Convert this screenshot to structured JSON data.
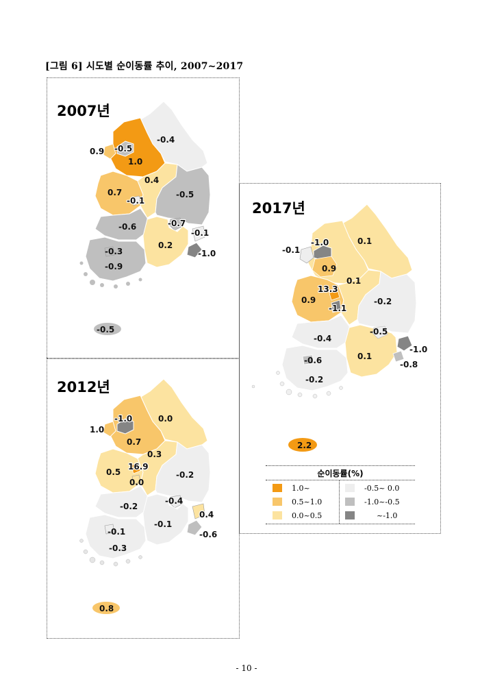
{
  "page_title": "[그림 6] 시도별 순이동률 추이, 2007~2017",
  "page_number": "- 10 -",
  "colors": {
    "c_1_up": "#f39a14",
    "c_05_10": "#f8c66a",
    "c_00_05": "#fce3a0",
    "c_m05_00": "#eeeeee",
    "c_m10_m05": "#bfbfbf",
    "c_below_m10": "#858585"
  },
  "maps": [
    {
      "year_label": "2007년",
      "values": {
        "seoul": "-0.5",
        "incheon": "0.9",
        "gyeonggi": "1.0",
        "gangwon": "-0.4",
        "chungbuk": "0.4",
        "chungnam": "0.7",
        "daejeon": "-0.1",
        "gyeongbuk": "-0.5",
        "jeonbuk": "-0.6",
        "daegu": "-0.7",
        "ulsan": "-0.1",
        "gwangju": "-0.3",
        "jeonnam": "-0.9",
        "gyeongnam": "0.2",
        "busan": "-1.0",
        "jeju": "-0.5"
      }
    },
    {
      "year_label": "2012년",
      "values": {
        "seoul": "-1.0",
        "incheon": "1.0",
        "gyeonggi": "0.7",
        "gangwon": "0.0",
        "chungbuk": "0.3",
        "chungnam": "0.5",
        "sejong": "16.9",
        "daejeon": "0.0",
        "gyeongbuk": "-0.2",
        "jeonbuk": "-0.2",
        "daegu": "-0.4",
        "ulsan": "0.4",
        "gwangju": "-0.1",
        "jeonnam": "-0.3",
        "gyeongnam": "-0.1",
        "busan": "-0.6",
        "jeju": "0.8"
      }
    },
    {
      "year_label": "2017년",
      "values": {
        "seoul": "-1.0",
        "incheon": "-0.1",
        "gyeonggi": "0.9",
        "gangwon": "0.1",
        "chungbuk": "0.1",
        "chungnam": "0.9",
        "sejong": "13.3",
        "daejeon": "-1.1",
        "gyeongbuk": "-0.2",
        "jeonbuk": "-0.4",
        "daegu": "-0.5",
        "ulsan": "-0.8",
        "gwangju": "-0.6",
        "jeonnam": "-0.2",
        "gyeongnam": "0.1",
        "busan": "-1.0",
        "jeju": "2.2"
      }
    }
  ],
  "legend": {
    "title": "순이동률(%)",
    "items": [
      {
        "label": "1.0~",
        "color": "#f39a14"
      },
      {
        "label": "0.5~1.0",
        "color": "#f8c66a"
      },
      {
        "label": "0.0~0.5",
        "color": "#fce3a0"
      },
      {
        "label": "-0.5~ 0.0",
        "color": "#eeeeee"
      },
      {
        "label": "-1.0~-0.5",
        "color": "#bfbfbf"
      },
      {
        "label": "~-1.0",
        "color": "#858585"
      }
    ]
  }
}
